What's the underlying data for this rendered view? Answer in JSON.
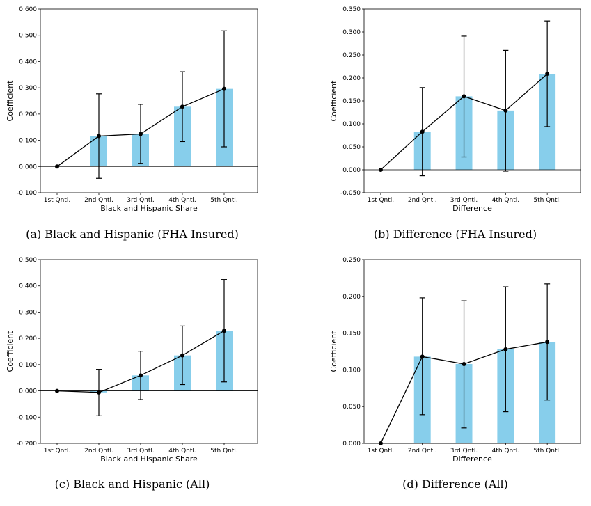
{
  "colors": {
    "bar": "#87ceeb",
    "line": "#000000"
  },
  "chart_data": [
    {
      "type": "bar",
      "caption": "(a) Black and Hispanic (FHA Insured)",
      "categories": [
        "1st Qntl.",
        "2nd Qntl.",
        "3rd Qntl.",
        "4th Qntl.",
        "5th Qntl."
      ],
      "xlabel": "Black and Hispanic Share",
      "ylabel": "Coefficient",
      "ylim": [
        -0.1,
        0.6
      ],
      "yticks": [
        "-0.100",
        "0.000",
        "0.100",
        "0.200",
        "0.300",
        "0.400",
        "0.500",
        "0.600"
      ],
      "values": [
        0.0,
        0.116,
        0.124,
        0.228,
        0.296
      ],
      "ci_low": [
        0.0,
        -0.045,
        0.012,
        0.095,
        0.075
      ],
      "ci_high": [
        0.0,
        0.277,
        0.237,
        0.361,
        0.517
      ]
    },
    {
      "type": "bar",
      "caption": "(b) Difference (FHA Insured)",
      "categories": [
        "1st Qntl.",
        "2nd Qntl.",
        "3rd Qntl.",
        "4th Qntl.",
        "5th Qntl."
      ],
      "xlabel": "Difference",
      "ylabel": "Coefficient",
      "ylim": [
        -0.05,
        0.35
      ],
      "yticks": [
        "-0.050",
        "0.000",
        "0.050",
        "0.100",
        "0.150",
        "0.200",
        "0.250",
        "0.300",
        "0.350"
      ],
      "values": [
        0.0,
        0.083,
        0.16,
        0.129,
        0.209
      ],
      "ci_low": [
        0.0,
        -0.013,
        0.028,
        -0.003,
        0.094
      ],
      "ci_high": [
        0.0,
        0.179,
        0.291,
        0.26,
        0.324
      ]
    },
    {
      "type": "bar",
      "caption": "(c) Black and Hispanic (All)",
      "categories": [
        "1st Qntl.",
        "2nd Qntl.",
        "3rd Qntl.",
        "4th Qntl.",
        "5th Qntl."
      ],
      "xlabel": "Black and Hispanic Share",
      "ylabel": "Coefficient",
      "ylim": [
        -0.2,
        0.5
      ],
      "yticks": [
        "-0.200",
        "-0.100",
        "0.000",
        "0.100",
        "0.200",
        "0.300",
        "0.400",
        "0.500"
      ],
      "values": [
        0.0,
        -0.006,
        0.059,
        0.135,
        0.229
      ],
      "ci_low": [
        0.0,
        -0.095,
        -0.033,
        0.024,
        0.034
      ],
      "ci_high": [
        0.0,
        0.082,
        0.151,
        0.247,
        0.424
      ]
    },
    {
      "type": "bar",
      "caption": "(d) Difference (All)",
      "categories": [
        "1st Qntl.",
        "2nd Qntl.",
        "3rd Qntl.",
        "4th Qntl.",
        "5th Qntl."
      ],
      "xlabel": "Difference",
      "ylabel": "Coefficient",
      "ylim": [
        0.0,
        0.25
      ],
      "yticks": [
        "0.000",
        "0.050",
        "0.100",
        "0.150",
        "0.200",
        "0.250"
      ],
      "values": [
        0.0,
        0.118,
        0.108,
        0.128,
        0.138
      ],
      "ci_low": [
        0.0,
        0.039,
        0.021,
        0.043,
        0.059
      ],
      "ci_high": [
        0.0,
        0.198,
        0.194,
        0.213,
        0.217
      ]
    }
  ]
}
